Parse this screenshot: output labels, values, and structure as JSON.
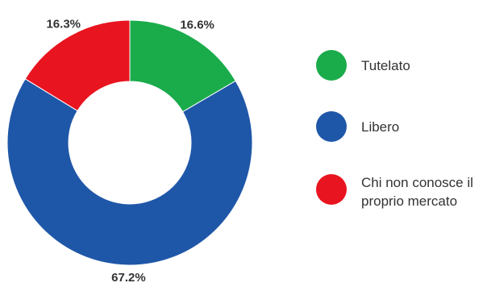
{
  "chart_data": {
    "type": "pie",
    "donut": true,
    "title": "",
    "slices": [
      {
        "name": "Tutelato",
        "value": 16.6,
        "label": "16.6%",
        "color": "#1aab4b"
      },
      {
        "name": "Libero",
        "value": 67.2,
        "label": "67.2%",
        "color": "#1f57a8"
      },
      {
        "name": "Chi non conosce il proprio mercato",
        "value": 16.3,
        "label": "16.3%",
        "color": "#e8141f"
      }
    ],
    "start_angle_deg": 0,
    "direction": "clockwise",
    "legend_position": "right"
  },
  "legend": {
    "items": [
      {
        "label": "Tutelato",
        "color": "#1aab4b"
      },
      {
        "label": "Libero",
        "color": "#1f57a8"
      },
      {
        "label": "Chi non conosce il proprio mercato",
        "color": "#e8141f"
      }
    ]
  }
}
